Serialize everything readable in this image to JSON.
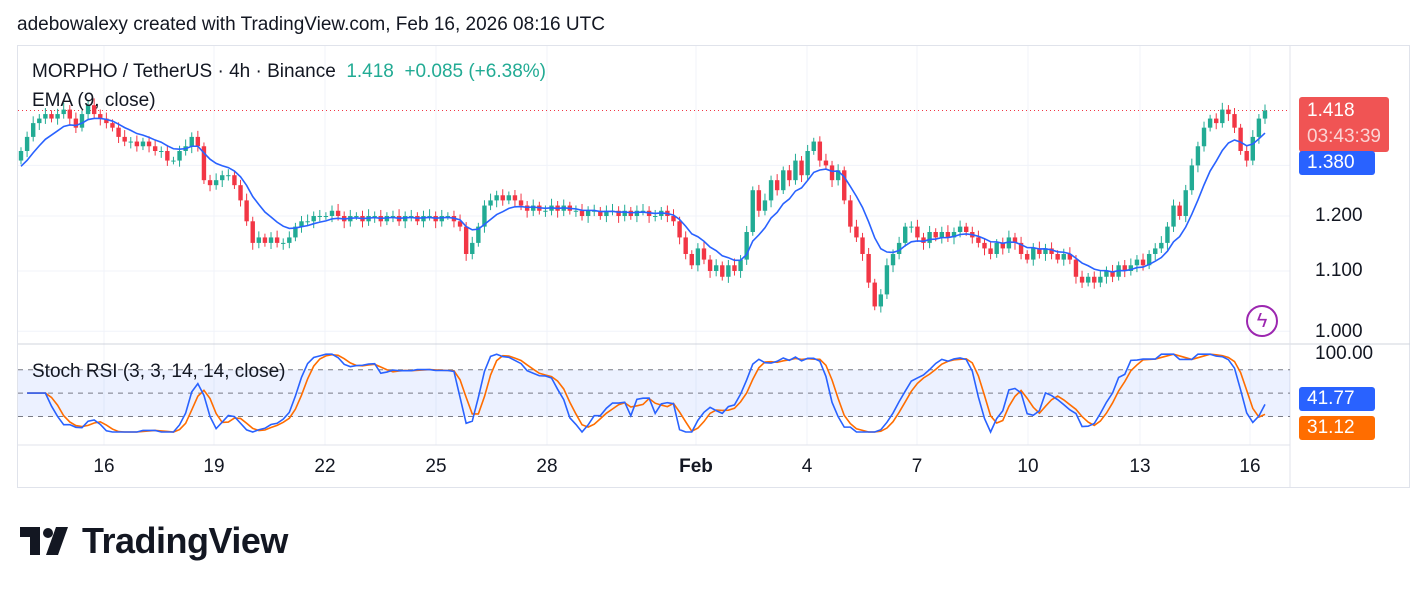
{
  "credit": "adebowalexy created with TradingView.com, Feb 16, 2026 08:16 UTC",
  "legend": {
    "symbol": "MORPHO / TetherUS · 4h · Binance",
    "price": "1.418",
    "change": "+0.085 (+6.38%)"
  },
  "indicators": {
    "ema": "EMA (9, close)",
    "stoch": "Stoch RSI (3, 3, 14, 14, close)"
  },
  "price_tags": {
    "last": "1.418",
    "countdown": "03:43:39",
    "ema": "1.380",
    "stoch_k": "41.77",
    "stoch_d": "31.12"
  },
  "logo": "TradingView",
  "colors": {
    "up": "#22ab94",
    "down": "#f23645",
    "ema": "#2962ff",
    "k": "#2962ff",
    "d": "#ff6d00"
  },
  "chart_data": {
    "type": "candlestick",
    "title": "MORPHO / TetherUS · 4h · Binance",
    "y_ticks": [
      "1.200",
      "1.100",
      "1.000"
    ],
    "y_tick_values": [
      1.2,
      1.1,
      1.0
    ],
    "y_scale": "log",
    "stoch_ticks": [
      "100.00"
    ],
    "x_ticks": [
      "16",
      "19",
      "22",
      "25",
      "28",
      "Feb",
      "4",
      "7",
      "10",
      "13",
      "16"
    ],
    "closes": [
      1.33,
      1.36,
      1.39,
      1.4,
      1.41,
      1.4,
      1.41,
      1.42,
      1.4,
      1.38,
      1.41,
      1.43,
      1.41,
      1.4,
      1.39,
      1.38,
      1.36,
      1.35,
      1.35,
      1.34,
      1.35,
      1.34,
      1.33,
      1.33,
      1.31,
      1.31,
      1.33,
      1.34,
      1.36,
      1.34,
      1.27,
      1.26,
      1.27,
      1.28,
      1.28,
      1.26,
      1.23,
      1.19,
      1.15,
      1.16,
      1.15,
      1.16,
      1.15,
      1.15,
      1.16,
      1.18,
      1.19,
      1.19,
      1.2,
      1.2,
      1.2,
      1.21,
      1.2,
      1.19,
      1.2,
      1.2,
      1.19,
      1.2,
      1.2,
      1.19,
      1.2,
      1.2,
      1.19,
      1.2,
      1.2,
      1.19,
      1.2,
      1.2,
      1.19,
      1.2,
      1.2,
      1.19,
      1.18,
      1.13,
      1.15,
      1.18,
      1.22,
      1.23,
      1.24,
      1.23,
      1.24,
      1.23,
      1.22,
      1.21,
      1.22,
      1.21,
      1.21,
      1.22,
      1.21,
      1.22,
      1.21,
      1.21,
      1.2,
      1.21,
      1.21,
      1.2,
      1.21,
      1.21,
      1.2,
      1.21,
      1.2,
      1.21,
      1.21,
      1.2,
      1.2,
      1.21,
      1.2,
      1.19,
      1.16,
      1.13,
      1.11,
      1.14,
      1.12,
      1.1,
      1.11,
      1.09,
      1.11,
      1.1,
      1.12,
      1.17,
      1.25,
      1.21,
      1.23,
      1.27,
      1.25,
      1.29,
      1.27,
      1.31,
      1.28,
      1.33,
      1.35,
      1.31,
      1.3,
      1.27,
      1.29,
      1.23,
      1.18,
      1.16,
      1.13,
      1.08,
      1.04,
      1.06,
      1.11,
      1.13,
      1.15,
      1.18,
      1.18,
      1.16,
      1.15,
      1.17,
      1.16,
      1.17,
      1.16,
      1.17,
      1.18,
      1.17,
      1.16,
      1.15,
      1.14,
      1.13,
      1.15,
      1.14,
      1.16,
      1.15,
      1.13,
      1.12,
      1.14,
      1.13,
      1.14,
      1.13,
      1.12,
      1.13,
      1.12,
      1.09,
      1.08,
      1.09,
      1.08,
      1.09,
      1.1,
      1.09,
      1.11,
      1.1,
      1.11,
      1.12,
      1.11,
      1.13,
      1.14,
      1.15,
      1.18,
      1.22,
      1.2,
      1.25,
      1.3,
      1.34,
      1.38,
      1.4,
      1.39,
      1.42,
      1.41,
      1.38,
      1.33,
      1.31,
      1.36,
      1.4,
      1.418
    ],
    "last_price": 1.418,
    "ema_period": 9,
    "stoch_params": [
      3,
      3,
      14,
      14
    ],
    "stoch_bands": [
      80,
      20
    ]
  }
}
